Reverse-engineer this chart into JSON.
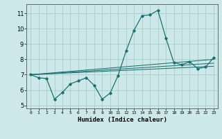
{
  "xlabel": "Humidex (Indice chaleur)",
  "background_color": "#cce8e8",
  "grid_color": "#aacccc",
  "line_color": "#1a7070",
  "xlim": [
    -0.5,
    23.5
  ],
  "ylim": [
    4.8,
    11.6
  ],
  "xticks": [
    0,
    1,
    2,
    3,
    4,
    5,
    6,
    7,
    8,
    9,
    10,
    11,
    12,
    13,
    14,
    15,
    16,
    17,
    18,
    19,
    20,
    21,
    22,
    23
  ],
  "yticks": [
    5,
    6,
    7,
    8,
    9,
    10,
    11
  ],
  "main_line": [
    [
      0,
      7.0
    ],
    [
      1,
      6.8
    ],
    [
      2,
      6.75
    ],
    [
      3,
      5.4
    ],
    [
      4,
      5.85
    ],
    [
      5,
      6.4
    ],
    [
      6,
      6.6
    ],
    [
      7,
      6.8
    ],
    [
      8,
      6.3
    ],
    [
      9,
      5.4
    ],
    [
      10,
      5.8
    ],
    [
      11,
      6.95
    ],
    [
      12,
      8.55
    ],
    [
      13,
      9.9
    ],
    [
      14,
      10.85
    ],
    [
      15,
      10.9
    ],
    [
      16,
      11.2
    ],
    [
      17,
      9.4
    ],
    [
      18,
      7.8
    ],
    [
      19,
      7.65
    ],
    [
      20,
      7.85
    ],
    [
      21,
      7.4
    ],
    [
      22,
      7.5
    ],
    [
      23,
      8.1
    ]
  ],
  "trend_lines": [
    [
      [
        0,
        7.0
      ],
      [
        23,
        8.0
      ]
    ],
    [
      [
        0,
        7.0
      ],
      [
        23,
        7.75
      ]
    ],
    [
      [
        0,
        7.0
      ],
      [
        23,
        7.55
      ]
    ]
  ]
}
